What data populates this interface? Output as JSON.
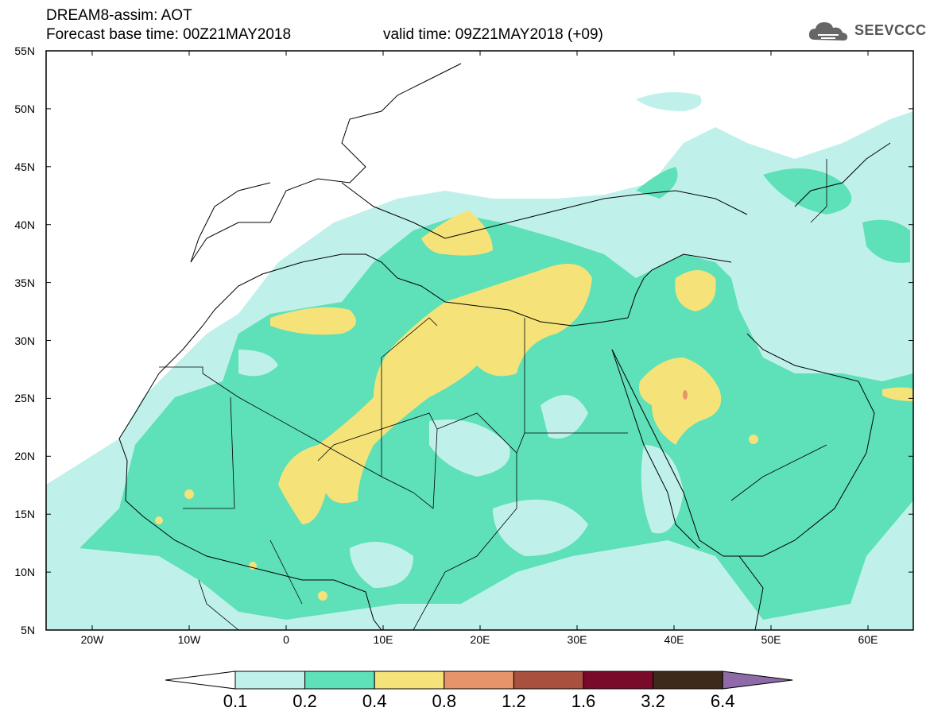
{
  "header": {
    "title_line1": "DREAM8-assim: AOT",
    "title_line2": "Forecast base time: 00Z21MAY2018",
    "valid_time": "valid time: 09Z21MAY2018 (+09)",
    "logo_text": "SEEVCCC",
    "logo_icon": "cloud-icon"
  },
  "map": {
    "lat_labels": [
      "55N",
      "50N",
      "45N",
      "40N",
      "35N",
      "30N",
      "25N",
      "20N",
      "15N",
      "10N",
      "5N"
    ],
    "lon_labels": [
      "20W",
      "10W",
      "0",
      "10E",
      "20E",
      "30E",
      "40E",
      "50E",
      "60E"
    ]
  },
  "legend": {
    "labels": [
      "0.1",
      "0.2",
      "0.4",
      "0.8",
      "1.2",
      "1.6",
      "3.2",
      "6.4"
    ],
    "colors": [
      "#ffffff",
      "#bff1ea",
      "#5ee0b8",
      "#f5e37a",
      "#e8946a",
      "#a9503f",
      "#7a0a2a",
      "#3e2a1a",
      "#8e6aa8"
    ]
  }
}
